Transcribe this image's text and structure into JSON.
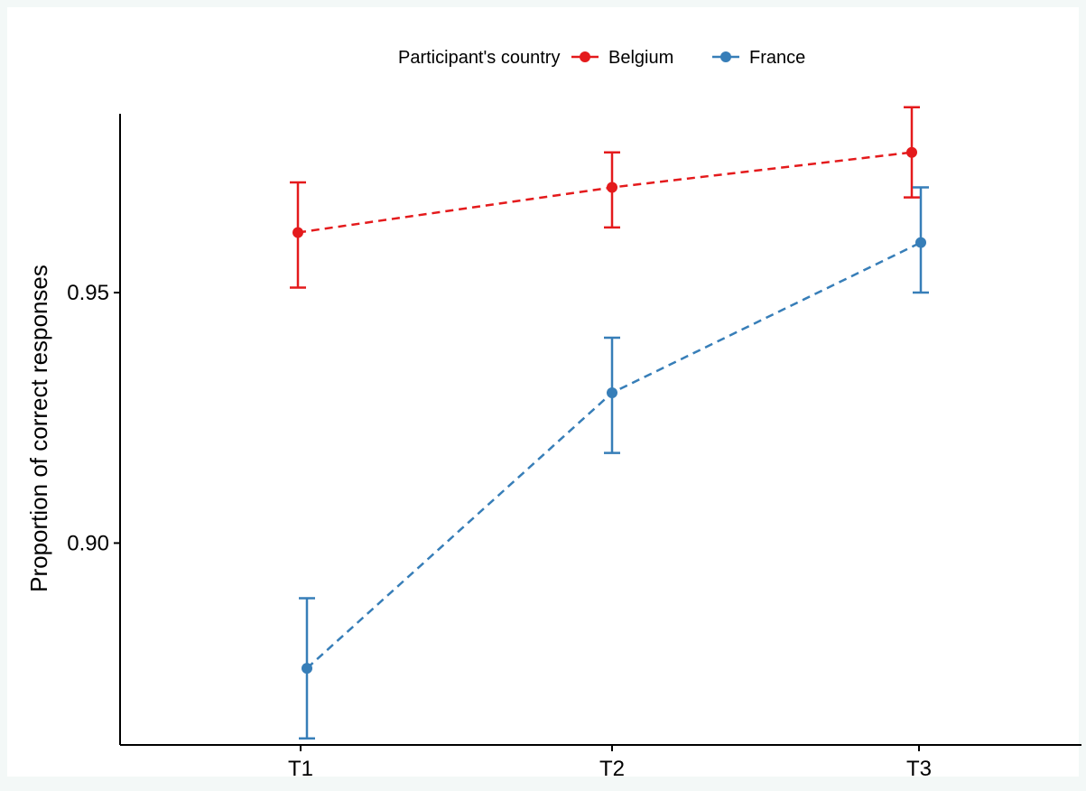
{
  "chart_data": {
    "type": "line",
    "title": "",
    "xlabel": "",
    "ylabel": "Proportion of correct responses",
    "categories": [
      "T1",
      "T2",
      "T3"
    ],
    "y_ticks": [
      0.9,
      0.95
    ],
    "y_tick_labels": [
      "0.90",
      "0.95"
    ],
    "ylim": [
      0.8597,
      0.9857
    ],
    "grid": false,
    "line_style": "dashed",
    "error_bars": true,
    "legend": {
      "title": "Participant's country",
      "placement": "top"
    },
    "series": [
      {
        "name": "Belgium",
        "color": "#e41a1c",
        "values": [
          0.962,
          0.971,
          0.978
        ],
        "lower": [
          0.951,
          0.963,
          0.969
        ],
        "upper": [
          0.972,
          0.978,
          0.987
        ]
      },
      {
        "name": "France",
        "color": "#377eb8",
        "values": [
          0.875,
          0.93,
          0.96
        ],
        "lower": [
          0.861,
          0.918,
          0.95
        ],
        "upper": [
          0.889,
          0.941,
          0.971
        ]
      }
    ]
  }
}
